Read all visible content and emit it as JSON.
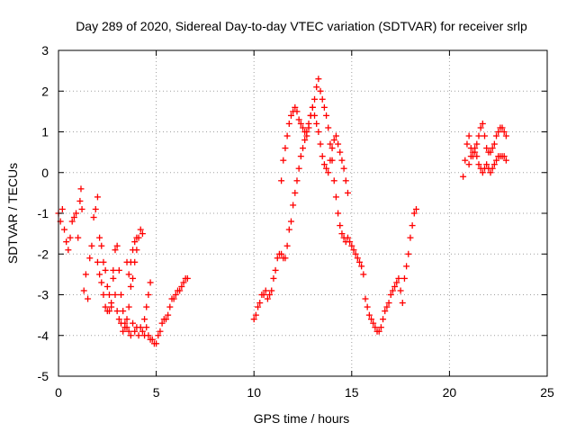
{
  "chart_data": {
    "type": "scatter",
    "title": "Day 289 of 2020, Sidereal Day-to-day VTEC variation (SDTVAR) for receiver srlp",
    "xlabel": "GPS time / hours",
    "ylabel": "SDTVAR / TECUs",
    "xlim": [
      0,
      25
    ],
    "ylim": [
      -5,
      3
    ],
    "xticks": [
      0,
      5,
      10,
      15,
      20,
      25
    ],
    "yticks": [
      -5,
      -4,
      -3,
      -2,
      -1,
      0,
      1,
      2,
      3
    ],
    "grid": true,
    "marker": "+",
    "color": "#ff0000",
    "series": [
      {
        "name": "SDTVAR",
        "x": [
          0.0,
          0.1,
          0.2,
          0.3,
          0.4,
          0.5,
          0.6,
          0.7,
          0.8,
          0.9,
          1.0,
          1.1,
          1.15,
          1.2,
          1.3,
          1.4,
          1.5,
          1.6,
          1.7,
          1.8,
          1.9,
          2.0,
          2.1,
          2.2,
          2.3,
          2.4,
          2.5,
          2.6,
          2.7,
          2.8,
          2.9,
          3.0,
          3.1,
          3.2,
          3.3,
          3.4,
          3.5,
          3.6,
          3.7,
          3.8,
          3.9,
          4.0,
          4.1,
          4.2,
          4.3,
          4.4,
          4.5,
          4.6,
          4.7,
          4.8,
          4.9,
          5.0,
          5.1,
          5.2,
          5.3,
          5.4,
          5.5,
          5.6,
          5.7,
          5.8,
          5.9,
          6.0,
          6.1,
          6.2,
          6.3,
          6.4,
          6.5,
          6.6,
          2.0,
          2.1,
          2.2,
          2.3,
          2.4,
          2.5,
          2.6,
          2.7,
          2.8,
          2.9,
          3.0,
          3.1,
          3.2,
          3.3,
          3.4,
          3.5,
          3.6,
          3.7,
          3.8,
          3.9,
          4.0,
          4.1,
          4.2,
          4.3,
          4.4,
          4.5,
          4.6,
          4.7,
          3.5,
          3.6,
          3.7,
          3.8,
          3.9,
          4.0,
          10.0,
          10.1,
          10.2,
          10.3,
          10.4,
          10.5,
          10.6,
          10.7,
          10.8,
          10.9,
          11.0,
          11.1,
          11.2,
          11.3,
          11.4,
          11.5,
          11.6,
          11.7,
          11.8,
          11.9,
          12.0,
          12.1,
          12.2,
          12.3,
          12.4,
          12.5,
          12.6,
          12.7,
          12.8,
          12.9,
          13.0,
          13.1,
          13.2,
          13.3,
          13.4,
          13.5,
          13.6,
          13.7,
          13.8,
          13.9,
          14.0,
          14.1,
          14.2,
          14.3,
          14.4,
          14.5,
          14.6,
          14.7,
          14.8,
          14.9,
          15.0,
          15.1,
          15.2,
          15.3,
          15.4,
          15.5,
          15.6,
          15.7,
          15.8,
          15.9,
          16.0,
          16.1,
          16.2,
          16.3,
          16.4,
          16.5,
          16.6,
          16.7,
          16.8,
          16.9,
          17.0,
          17.1,
          17.2,
          17.3,
          17.4,
          17.5,
          17.6,
          17.7,
          17.8,
          17.9,
          18.0,
          18.1,
          18.2,
          18.3,
          11.4,
          11.5,
          11.6,
          11.7,
          11.8,
          11.9,
          12.0,
          12.1,
          12.2,
          12.3,
          12.4,
          12.5,
          12.6,
          12.7,
          12.8,
          12.9,
          13.0,
          13.1,
          13.2,
          13.3,
          13.4,
          13.5,
          13.6,
          13.7,
          13.8,
          13.9,
          14.0,
          14.1,
          14.2,
          14.3,
          14.4,
          14.5,
          14.6,
          14.7,
          14.8,
          20.7,
          20.8,
          20.9,
          21.0,
          21.1,
          21.2,
          21.3,
          21.4,
          21.5,
          21.6,
          21.7,
          21.8,
          21.9,
          22.0,
          22.1,
          22.2,
          22.3,
          22.4,
          22.5,
          22.6,
          22.7,
          22.8,
          22.9,
          21.0,
          21.1,
          21.2,
          21.3,
          21.4,
          21.5,
          21.6,
          21.7,
          21.8,
          21.9,
          22.0,
          22.1,
          22.2,
          22.3,
          22.4,
          22.5,
          22.6,
          22.7,
          22.8,
          22.9
        ],
        "y": [
          -1.0,
          -1.2,
          -0.9,
          -1.4,
          -1.7,
          -1.9,
          -1.6,
          -1.2,
          -1.1,
          -1.0,
          -1.6,
          -0.7,
          -0.4,
          -0.9,
          -2.9,
          -2.5,
          -3.1,
          -2.1,
          -1.8,
          -1.1,
          -0.9,
          -2.2,
          -2.5,
          -2.7,
          -3.0,
          -3.3,
          -3.4,
          -3.4,
          -3.2,
          -2.6,
          -3.0,
          -3.4,
          -3.6,
          -3.7,
          -3.9,
          -3.8,
          -3.6,
          -3.9,
          -4.0,
          -3.7,
          -3.9,
          -3.8,
          -4.0,
          -3.8,
          -3.9,
          -4.0,
          -3.8,
          -4.0,
          -4.1,
          -4.1,
          -4.2,
          -4.2,
          -4.0,
          -3.9,
          -3.7,
          -3.6,
          -3.6,
          -3.5,
          -3.3,
          -3.1,
          -3.1,
          -3.0,
          -2.9,
          -2.9,
          -2.8,
          -2.7,
          -2.6,
          -2.6,
          -0.6,
          -1.6,
          -1.8,
          -2.2,
          -2.4,
          -2.8,
          -3.0,
          -3.3,
          -2.4,
          -1.9,
          -1.8,
          -2.4,
          -3.0,
          -3.4,
          -3.7,
          -3.8,
          -3.3,
          -2.8,
          -2.6,
          -2.2,
          -1.9,
          -1.6,
          -1.4,
          -1.5,
          -3.6,
          -3.3,
          -3.0,
          -2.7,
          -2.2,
          -2.5,
          -2.2,
          -1.9,
          -1.7,
          -1.6,
          -3.6,
          -3.5,
          -3.3,
          -3.2,
          -3.0,
          -3.0,
          -2.9,
          -3.1,
          -3.0,
          -2.9,
          -2.6,
          -2.4,
          -2.1,
          -2.0,
          -2.0,
          -2.1,
          -2.1,
          -1.8,
          -1.4,
          -1.2,
          -0.8,
          -0.5,
          -0.2,
          0.1,
          0.4,
          0.6,
          0.8,
          1.0,
          1.2,
          1.4,
          1.6,
          1.8,
          2.1,
          2.3,
          2.0,
          1.8,
          1.6,
          1.4,
          1.1,
          0.7,
          0.3,
          -0.2,
          -0.6,
          -1.0,
          -1.3,
          -1.5,
          -1.6,
          -1.7,
          -1.6,
          -1.7,
          -1.8,
          -1.9,
          -2.0,
          -2.1,
          -2.2,
          -2.3,
          -2.5,
          -3.1,
          -3.3,
          -3.5,
          -3.6,
          -3.7,
          -3.8,
          -3.9,
          -3.9,
          -3.8,
          -3.6,
          -3.4,
          -3.3,
          -3.2,
          -3.0,
          -2.9,
          -2.8,
          -2.7,
          -2.6,
          -2.9,
          -3.2,
          -2.6,
          -2.3,
          -2.0,
          -1.6,
          -1.3,
          -1.0,
          -0.9,
          -0.2,
          0.3,
          0.6,
          0.9,
          1.2,
          1.4,
          1.5,
          1.6,
          1.5,
          1.3,
          1.2,
          1.1,
          1.0,
          0.9,
          1.1,
          1.4,
          1.6,
          1.4,
          1.2,
          1.0,
          0.7,
          0.4,
          0.2,
          0.1,
          0.0,
          0.3,
          0.6,
          0.8,
          0.9,
          0.7,
          0.5,
          0.3,
          0.1,
          -0.2,
          -0.5,
          -0.1,
          0.3,
          0.7,
          0.9,
          0.6,
          0.4,
          0.5,
          0.7,
          0.9,
          1.1,
          1.2,
          0.9,
          0.6,
          0.5,
          0.5,
          0.6,
          0.7,
          0.9,
          1.0,
          1.1,
          1.1,
          1.0,
          0.9,
          0.2,
          0.4,
          0.5,
          0.6,
          0.4,
          0.2,
          0.1,
          0.0,
          0.1,
          0.2,
          0.1,
          0.0,
          0.1,
          0.2,
          0.3,
          0.4,
          0.4,
          0.4,
          0.4,
          0.3
        ]
      }
    ]
  }
}
